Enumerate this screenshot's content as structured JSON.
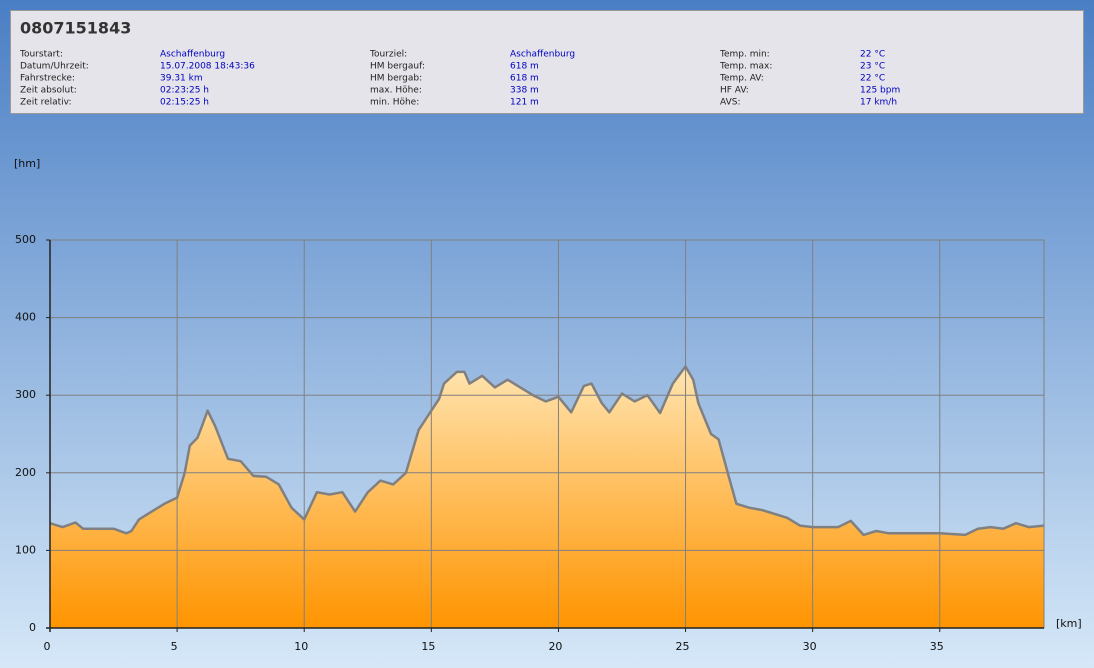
{
  "header": {
    "title": "0807151843",
    "columns": [
      [
        {
          "label": "Tourstart:",
          "value": "Aschaffenburg"
        },
        {
          "label": "Datum/Uhrzeit:",
          "value": "15.07.2008 18:43:36"
        },
        {
          "label": "Fahrstrecke:",
          "value": "39.31 km"
        },
        {
          "label": "Zeit absolut:",
          "value": "02:23:25 h"
        },
        {
          "label": "Zeit relativ:",
          "value": "02:15:25 h"
        }
      ],
      [
        {
          "label": "Tourziel:",
          "value": "Aschaffenburg"
        },
        {
          "label": "HM bergauf:",
          "value": "618 m"
        },
        {
          "label": "HM bergab:",
          "value": "618 m"
        },
        {
          "label": "max. Höhe:",
          "value": "338 m"
        },
        {
          "label": "min. Höhe:",
          "value": "121 m"
        }
      ],
      [
        {
          "label": "Temp. min:",
          "value": "22 °C"
        },
        {
          "label": "Temp. max:",
          "value": "23 °C"
        },
        {
          "label": "Temp. AV:",
          "value": "22 °C"
        },
        {
          "label": "HF AV:",
          "value": "125 bpm"
        },
        {
          "label": "AVS:",
          "value": "17 km/h"
        }
      ]
    ]
  },
  "chart_data": {
    "type": "area",
    "y_label": "[hm]",
    "x_label": "[km]",
    "color": "#808080",
    "grid": true,
    "x": [
      0,
      0.3,
      0.5,
      1,
      1.3,
      2,
      2.5,
      3,
      3.2,
      3.5,
      4,
      4.5,
      5,
      5.3,
      5.5,
      5.8,
      6,
      6.2,
      6.5,
      7,
      7.5,
      8,
      8.5,
      9,
      9.5,
      10,
      10.5,
      11,
      11.5,
      12,
      12.5,
      13,
      13.5,
      14,
      14.5,
      15,
      15.3,
      15.5,
      16,
      16.3,
      16.5,
      17,
      17.5,
      18,
      18.5,
      19,
      19.5,
      20,
      20.5,
      21,
      21.3,
      21.7,
      22,
      22.5,
      23,
      23.5,
      24,
      24.5,
      25,
      25.3,
      25.5,
      26,
      26.3,
      26.7,
      27,
      27.5,
      28,
      29,
      29.5,
      30,
      31,
      31.5,
      32,
      32.5,
      33,
      34,
      35,
      36,
      36.5,
      37,
      37.5,
      38,
      38.5,
      39.1
    ],
    "values": [
      135,
      132,
      130,
      136,
      128,
      128,
      128,
      122,
      125,
      140,
      150,
      160,
      168,
      200,
      235,
      245,
      262,
      280,
      260,
      218,
      215,
      196,
      195,
      185,
      155,
      140,
      175,
      172,
      175,
      150,
      175,
      190,
      185,
      200,
      255,
      280,
      295,
      315,
      330,
      330,
      315,
      325,
      310,
      320,
      310,
      300,
      292,
      298,
      278,
      312,
      315,
      290,
      278,
      302,
      292,
      300,
      277,
      315,
      337,
      320,
      290,
      250,
      243,
      195,
      160,
      155,
      152,
      142,
      132,
      130,
      130,
      138,
      120,
      125,
      122,
      122,
      122,
      120,
      128,
      130,
      128,
      135,
      130,
      132
    ],
    "xlim": [
      0,
      39.1
    ],
    "ylim": [
      0,
      500
    ],
    "xticks": [
      0,
      5,
      10,
      15,
      20,
      25,
      30,
      35
    ],
    "yticks": [
      0,
      100,
      200,
      300,
      400,
      500
    ]
  }
}
